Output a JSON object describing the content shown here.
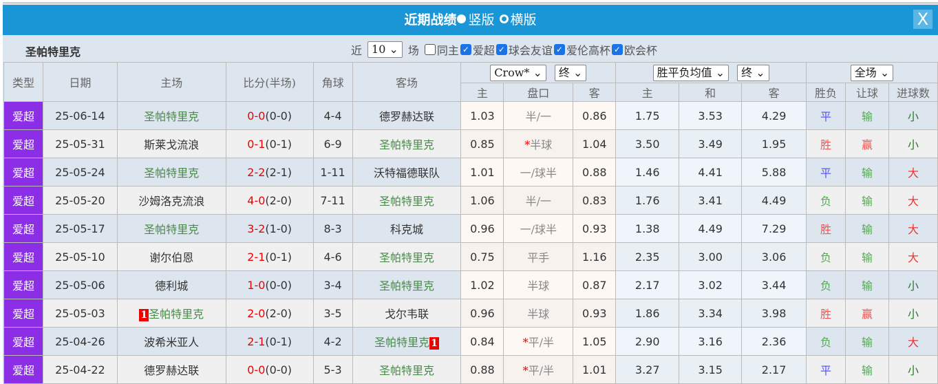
{
  "title": "近期战绩",
  "view_options": [
    {
      "label": "竖版",
      "selected": true
    },
    {
      "label": "横版",
      "selected": false
    }
  ],
  "close_label": "X",
  "team": "圣帕特里克",
  "filter": {
    "prefix": "近",
    "count": "10",
    "suffix": "场",
    "same_host": {
      "label": "同主",
      "checked": false
    },
    "competitions": [
      {
        "label": "爱超",
        "checked": true
      },
      {
        "label": "球会友谊",
        "checked": true
      },
      {
        "label": "爱伦高杯",
        "checked": true
      },
      {
        "label": "欧会杯",
        "checked": true
      }
    ]
  },
  "headers": {
    "type": "类型",
    "date": "日期",
    "home": "主场",
    "score": "比分(半场)",
    "corner": "角球",
    "away": "客场",
    "ah_company": "Crow*",
    "ah_time": "终",
    "eu_company": "胜平负均值",
    "eu_time": "终",
    "result_scope": "全场",
    "sub": [
      "主",
      "盘口",
      "客",
      "主",
      "和",
      "客",
      "胜负",
      "让球",
      "进球数"
    ]
  },
  "rows": [
    {
      "type": "爱超",
      "date": "25-06-14",
      "home": "圣帕特里克",
      "home_green": true,
      "home_rc": "",
      "score": "0-0",
      "half": "(0-0)",
      "corner": "4-4",
      "away": "德罗赫达联",
      "away_green": false,
      "away_rc": "",
      "h": "1.03",
      "hcp": "半/一",
      "hcp_star": "",
      "a": "0.86",
      "w": "1.75",
      "d": "3.53",
      "l": "4.29",
      "wl": "平",
      "ah": "输",
      "ou": "小"
    },
    {
      "type": "爱超",
      "date": "25-05-31",
      "home": "斯莱戈流浪",
      "home_green": false,
      "home_rc": "",
      "score": "0-1",
      "half": "(0-1)",
      "corner": "6-9",
      "away": "圣帕特里克",
      "away_green": true,
      "away_rc": "",
      "h": "0.85",
      "hcp": "半球",
      "hcp_star": "*",
      "a": "1.04",
      "w": "3.50",
      "d": "3.49",
      "l": "1.95",
      "wl": "胜",
      "ah": "赢",
      "ou": "小"
    },
    {
      "type": "爱超",
      "date": "25-05-24",
      "home": "圣帕特里克",
      "home_green": true,
      "home_rc": "",
      "score": "2-2",
      "half": "(2-1)",
      "corner": "1-11",
      "away": "沃特福德联队",
      "away_green": false,
      "away_rc": "",
      "h": "1.01",
      "hcp": "一/球半",
      "hcp_star": "",
      "a": "0.88",
      "w": "1.46",
      "d": "4.41",
      "l": "5.88",
      "wl": "平",
      "ah": "输",
      "ou": "大"
    },
    {
      "type": "爱超",
      "date": "25-05-20",
      "home": "沙姆洛克流浪",
      "home_green": false,
      "home_rc": "",
      "score": "4-0",
      "half": "(2-0)",
      "corner": "7-11",
      "away": "圣帕特里克",
      "away_green": true,
      "away_rc": "",
      "h": "1.06",
      "hcp": "半/一",
      "hcp_star": "",
      "a": "0.83",
      "w": "1.76",
      "d": "3.41",
      "l": "4.49",
      "wl": "负",
      "ah": "输",
      "ou": "大"
    },
    {
      "type": "爱超",
      "date": "25-05-17",
      "home": "圣帕特里克",
      "home_green": true,
      "home_rc": "",
      "score": "3-2",
      "half": "(1-0)",
      "corner": "8-3",
      "away": "科克城",
      "away_green": false,
      "away_rc": "",
      "h": "0.96",
      "hcp": "一/球半",
      "hcp_star": "",
      "a": "0.93",
      "w": "1.38",
      "d": "4.49",
      "l": "7.29",
      "wl": "胜",
      "ah": "输",
      "ou": "大"
    },
    {
      "type": "爱超",
      "date": "25-05-10",
      "home": "谢尔伯恩",
      "home_green": false,
      "home_rc": "",
      "score": "2-1",
      "half": "(0-1)",
      "corner": "4-6",
      "away": "圣帕特里克",
      "away_green": true,
      "away_rc": "",
      "h": "0.75",
      "hcp": "平手",
      "hcp_star": "",
      "a": "1.16",
      "w": "2.35",
      "d": "3.00",
      "l": "3.06",
      "wl": "负",
      "ah": "输",
      "ou": "大"
    },
    {
      "type": "爱超",
      "date": "25-05-06",
      "home": "德利城",
      "home_green": false,
      "home_rc": "",
      "score": "1-0",
      "half": "(0-0)",
      "corner": "3-4",
      "away": "圣帕特里克",
      "away_green": true,
      "away_rc": "",
      "h": "1.02",
      "hcp": "半球",
      "hcp_star": "",
      "a": "0.87",
      "w": "2.17",
      "d": "3.02",
      "l": "3.44",
      "wl": "负",
      "ah": "输",
      "ou": "小"
    },
    {
      "type": "爱超",
      "date": "25-05-03",
      "home": "圣帕特里克",
      "home_green": true,
      "home_rc": "1",
      "score": "2-0",
      "half": "(2-0)",
      "corner": "3-5",
      "away": "戈尔韦联",
      "away_green": false,
      "away_rc": "",
      "h": "0.96",
      "hcp": "半球",
      "hcp_star": "",
      "a": "0.93",
      "w": "1.86",
      "d": "3.34",
      "l": "3.98",
      "wl": "胜",
      "ah": "赢",
      "ou": "小"
    },
    {
      "type": "爱超",
      "date": "25-04-26",
      "home": "波希米亚人",
      "home_green": false,
      "home_rc": "",
      "score": "2-1",
      "half": "(0-1)",
      "corner": "4-2",
      "away": "圣帕特里克",
      "away_green": true,
      "away_rc": "1",
      "h": "0.84",
      "hcp": "平/半",
      "hcp_star": "*",
      "a": "1.05",
      "w": "2.90",
      "d": "3.16",
      "l": "2.36",
      "wl": "负",
      "ah": "输",
      "ou": "大"
    },
    {
      "type": "爱超",
      "date": "25-04-22",
      "home": "德罗赫达联",
      "home_green": false,
      "home_rc": "",
      "score": "0-0",
      "half": "(0-0)",
      "corner": "5-3",
      "away": "圣帕特里克",
      "away_green": true,
      "away_rc": "",
      "h": "0.88",
      "hcp": "平/半",
      "hcp_star": "*",
      "a": "1.01",
      "w": "3.27",
      "d": "3.15",
      "l": "2.17",
      "wl": "平",
      "ah": "输",
      "ou": "小"
    }
  ]
}
